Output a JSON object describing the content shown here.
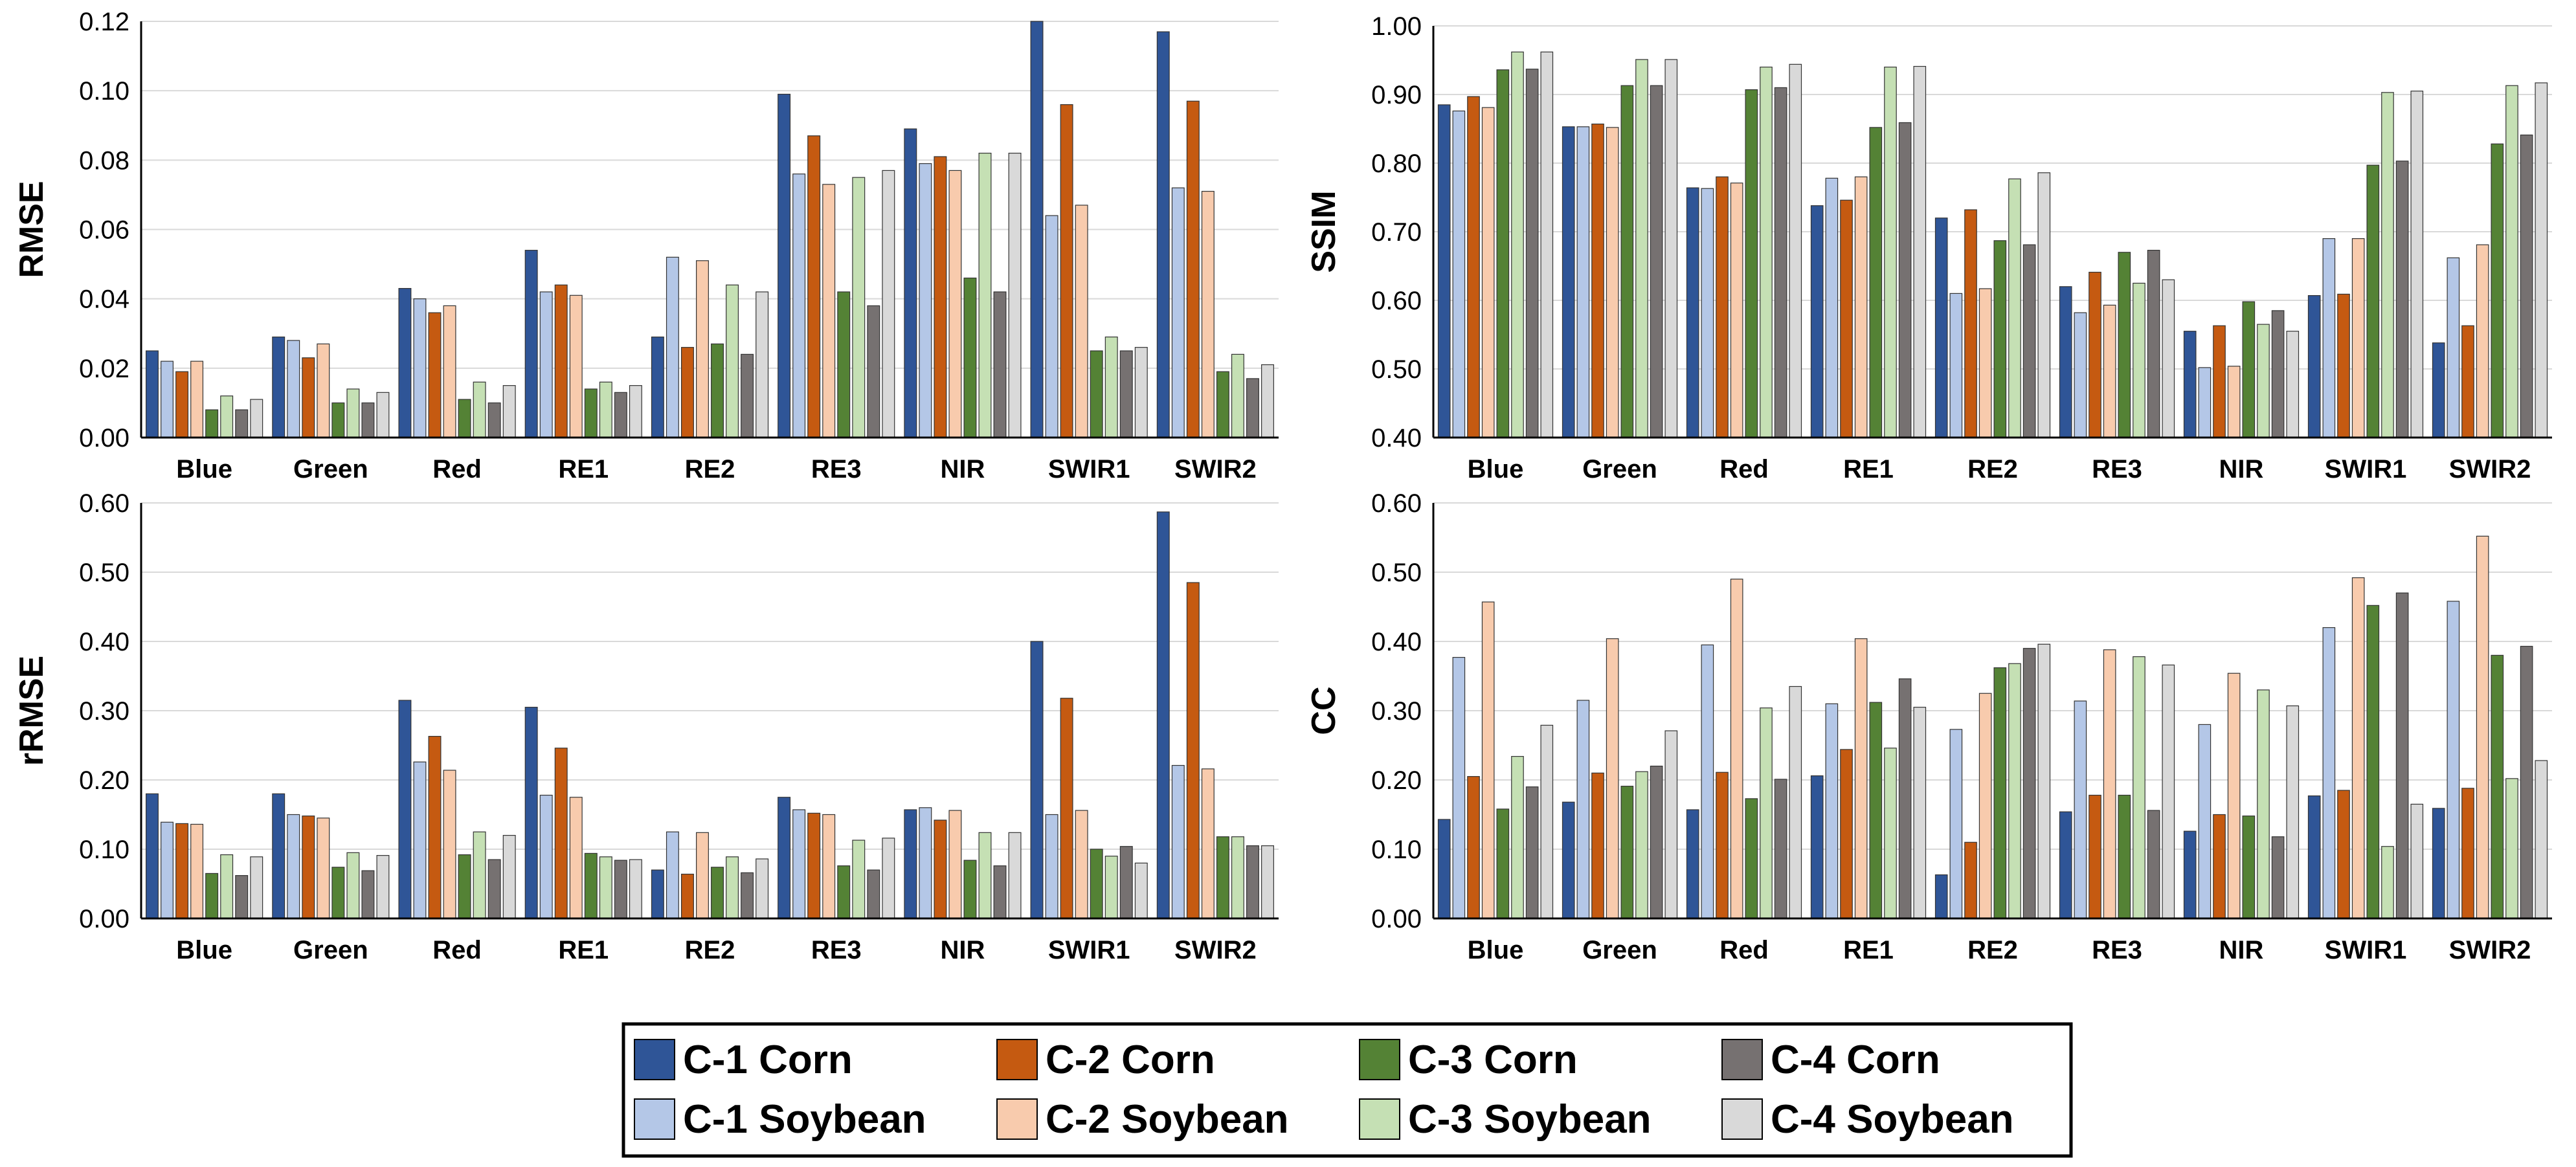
{
  "series_styles": [
    {
      "name": "C-1 Corn",
      "color": "#2F5597"
    },
    {
      "name": "C-1 Soybean",
      "color": "#B4C7E7"
    },
    {
      "name": "C-2 Corn",
      "color": "#C55A11"
    },
    {
      "name": "C-2 Soybean",
      "color": "#F8CBAD"
    },
    {
      "name": "C-3 Corn",
      "color": "#548235"
    },
    {
      "name": "C-3 Soybean",
      "color": "#C5E0B4"
    },
    {
      "name": "C-4 Corn",
      "color": "#767171"
    },
    {
      "name": "C-4 Soybean",
      "color": "#D9D9D9"
    }
  ],
  "legend": {
    "items": [
      "C-1 Corn",
      "C-2 Corn",
      "C-3 Corn",
      "C-4 Corn",
      "C-1 Soybean",
      "C-2 Soybean",
      "C-3 Soybean",
      "C-4 Soybean"
    ]
  },
  "chart_data": [
    {
      "type": "bar",
      "ylabel": "RMSE",
      "ylim": [
        0,
        0.12
      ],
      "yticks": [
        "0.00",
        "0.02",
        "0.04",
        "0.06",
        "0.08",
        "0.10",
        "0.12"
      ],
      "grid": true,
      "categories": [
        "Blue",
        "Green",
        "Red",
        "RE1",
        "RE2",
        "RE3",
        "NIR",
        "SWIR1",
        "SWIR2"
      ],
      "series": [
        {
          "name": "C-1 Corn",
          "values": [
            0.025,
            0.029,
            0.043,
            0.054,
            0.029,
            0.099,
            0.089,
            0.12,
            0.117
          ]
        },
        {
          "name": "C-1 Soybean",
          "values": [
            0.022,
            0.028,
            0.04,
            0.042,
            0.052,
            0.076,
            0.079,
            0.064,
            0.072
          ]
        },
        {
          "name": "C-2 Corn",
          "values": [
            0.019,
            0.023,
            0.036,
            0.044,
            0.026,
            0.087,
            0.081,
            0.096,
            0.097
          ]
        },
        {
          "name": "C-2 Soybean",
          "values": [
            0.022,
            0.027,
            0.038,
            0.041,
            0.051,
            0.073,
            0.077,
            0.067,
            0.071
          ]
        },
        {
          "name": "C-3 Corn",
          "values": [
            0.008,
            0.01,
            0.011,
            0.014,
            0.027,
            0.042,
            0.046,
            0.025,
            0.019
          ]
        },
        {
          "name": "C-3 Soybean",
          "values": [
            0.012,
            0.014,
            0.016,
            0.016,
            0.044,
            0.075,
            0.082,
            0.029,
            0.024
          ]
        },
        {
          "name": "C-4 Corn",
          "values": [
            0.008,
            0.01,
            0.01,
            0.013,
            0.024,
            0.038,
            0.042,
            0.025,
            0.017
          ]
        },
        {
          "name": "C-4 Soybean",
          "values": [
            0.011,
            0.013,
            0.015,
            0.015,
            0.042,
            0.077,
            0.082,
            0.026,
            0.021
          ]
        }
      ]
    },
    {
      "type": "bar",
      "ylabel": "SSIM",
      "ylim": [
        0.4,
        1.0
      ],
      "yticks": [
        "0.40",
        "0.50",
        "0.60",
        "0.70",
        "0.80",
        "0.90",
        "1.00"
      ],
      "grid": true,
      "categories": [
        "Blue",
        "Green",
        "Red",
        "RE1",
        "RE2",
        "RE3",
        "NIR",
        "SWIR1",
        "SWIR2"
      ],
      "series": [
        {
          "name": "C-1 Corn",
          "values": [
            0.885,
            0.853,
            0.764,
            0.738,
            0.72,
            0.62,
            0.555,
            0.607,
            0.538
          ]
        },
        {
          "name": "C-1 Soybean",
          "values": [
            0.876,
            0.853,
            0.763,
            0.778,
            0.61,
            0.582,
            0.502,
            0.69,
            0.662
          ]
        },
        {
          "name": "C-2 Corn",
          "values": [
            0.897,
            0.857,
            0.78,
            0.746,
            0.732,
            0.641,
            0.563,
            0.609,
            0.563
          ]
        },
        {
          "name": "C-2 Soybean",
          "values": [
            0.881,
            0.852,
            0.771,
            0.78,
            0.617,
            0.593,
            0.504,
            0.69,
            0.681
          ]
        },
        {
          "name": "C-3 Corn",
          "values": [
            0.936,
            0.913,
            0.907,
            0.852,
            0.687,
            0.67,
            0.598,
            0.797,
            0.828
          ]
        },
        {
          "name": "C-3 Soybean",
          "values": [
            0.962,
            0.951,
            0.94,
            0.94,
            0.777,
            0.625,
            0.565,
            0.903,
            0.913
          ]
        },
        {
          "name": "C-4 Corn",
          "values": [
            0.937,
            0.913,
            0.91,
            0.859,
            0.681,
            0.673,
            0.585,
            0.803,
            0.841
          ]
        },
        {
          "name": "C-4 Soybean",
          "values": [
            0.962,
            0.951,
            0.944,
            0.941,
            0.786,
            0.63,
            0.555,
            0.905,
            0.917
          ]
        }
      ]
    },
    {
      "type": "bar",
      "ylabel": "rRMSE",
      "ylim": [
        0,
        0.6
      ],
      "yticks": [
        "0.00",
        "0.10",
        "0.20",
        "0.30",
        "0.40",
        "0.50",
        "0.60"
      ],
      "grid": true,
      "categories": [
        "Blue",
        "Green",
        "Red",
        "RE1",
        "RE2",
        "RE3",
        "NIR",
        "SWIR1",
        "SWIR2"
      ],
      "series": [
        {
          "name": "C-1 Corn",
          "values": [
            0.18,
            0.18,
            0.315,
            0.305,
            0.07,
            0.175,
            0.157,
            0.4,
            0.587
          ]
        },
        {
          "name": "C-1 Soybean",
          "values": [
            0.139,
            0.15,
            0.226,
            0.178,
            0.125,
            0.157,
            0.16,
            0.15,
            0.221
          ]
        },
        {
          "name": "C-2 Corn",
          "values": [
            0.137,
            0.148,
            0.263,
            0.246,
            0.064,
            0.152,
            0.142,
            0.318,
            0.485
          ]
        },
        {
          "name": "C-2 Soybean",
          "values": [
            0.136,
            0.145,
            0.214,
            0.175,
            0.124,
            0.15,
            0.156,
            0.156,
            0.216
          ]
        },
        {
          "name": "C-3 Corn",
          "values": [
            0.065,
            0.074,
            0.092,
            0.094,
            0.074,
            0.076,
            0.084,
            0.1,
            0.118
          ]
        },
        {
          "name": "C-3 Soybean",
          "values": [
            0.092,
            0.095,
            0.125,
            0.089,
            0.089,
            0.113,
            0.124,
            0.09,
            0.118
          ]
        },
        {
          "name": "C-4 Corn",
          "values": [
            0.062,
            0.069,
            0.085,
            0.084,
            0.066,
            0.07,
            0.076,
            0.104,
            0.105
          ]
        },
        {
          "name": "C-4 Soybean",
          "values": [
            0.089,
            0.091,
            0.12,
            0.085,
            0.086,
            0.116,
            0.124,
            0.08,
            0.105
          ]
        }
      ]
    },
    {
      "type": "bar",
      "ylabel": "CC",
      "ylim": [
        0,
        0.6
      ],
      "yticks": [
        "0.00",
        "0.10",
        "0.20",
        "0.30",
        "0.40",
        "0.50",
        "0.60"
      ],
      "grid": true,
      "categories": [
        "Blue",
        "Green",
        "Red",
        "RE1",
        "RE2",
        "RE3",
        "NIR",
        "SWIR1",
        "SWIR2"
      ],
      "series": [
        {
          "name": "C-1 Corn",
          "values": [
            0.143,
            0.168,
            0.157,
            0.206,
            0.063,
            0.154,
            0.126,
            0.177,
            0.159
          ]
        },
        {
          "name": "C-1 Soybean",
          "values": [
            0.377,
            0.315,
            0.395,
            0.31,
            0.273,
            0.314,
            0.28,
            0.42,
            0.458
          ]
        },
        {
          "name": "C-2 Corn",
          "values": [
            0.205,
            0.21,
            0.211,
            0.244,
            0.11,
            0.178,
            0.15,
            0.185,
            0.188
          ]
        },
        {
          "name": "C-2 Soybean",
          "values": [
            0.457,
            0.404,
            0.49,
            0.404,
            0.325,
            0.388,
            0.354,
            0.492,
            0.552
          ]
        },
        {
          "name": "C-3 Corn",
          "values": [
            0.158,
            0.191,
            0.173,
            0.312,
            0.362,
            0.178,
            0.148,
            0.452,
            0.38
          ]
        },
        {
          "name": "C-3 Soybean",
          "values": [
            0.234,
            0.212,
            0.304,
            0.246,
            0.368,
            0.378,
            0.33,
            0.104,
            0.202
          ]
        },
        {
          "name": "C-4 Corn",
          "values": [
            0.19,
            0.22,
            0.201,
            0.346,
            0.39,
            0.156,
            0.118,
            0.47,
            0.393
          ]
        },
        {
          "name": "C-4 Soybean",
          "values": [
            0.279,
            0.271,
            0.335,
            0.305,
            0.396,
            0.366,
            0.307,
            0.165,
            0.228
          ]
        }
      ]
    }
  ]
}
